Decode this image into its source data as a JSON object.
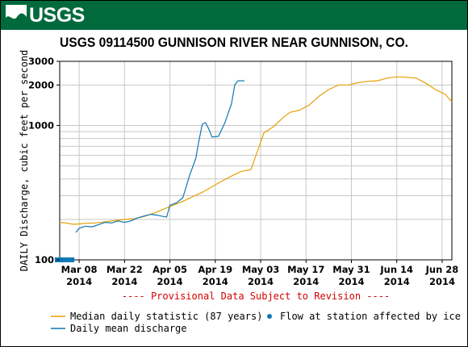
{
  "header": {
    "logo_text": "USGS"
  },
  "chart_data": {
    "type": "line",
    "title": "USGS 09114500 GUNNISON RIVER NEAR GUNNISON, CO.",
    "ylabel": "DAILY Discharge, cubic feet per second",
    "y_scale": "log",
    "ylim": [
      100,
      3000
    ],
    "y_ticks": [
      {
        "value": 100,
        "label": "100"
      },
      {
        "value": 1000,
        "label": "1000"
      },
      {
        "value": 2000,
        "label": "2000"
      },
      {
        "value": 3000,
        "label": "3000"
      }
    ],
    "x_ticks": [
      {
        "date": "2014-03-08",
        "label_top": "Mar 08",
        "label_bottom": "2014"
      },
      {
        "date": "2014-03-22",
        "label_top": "Mar 22",
        "label_bottom": "2014"
      },
      {
        "date": "2014-04-05",
        "label_top": "Apr 05",
        "label_bottom": "2014"
      },
      {
        "date": "2014-04-19",
        "label_top": "Apr 19",
        "label_bottom": "2014"
      },
      {
        "date": "2014-05-03",
        "label_top": "May 03",
        "label_bottom": "2014"
      },
      {
        "date": "2014-05-17",
        "label_top": "May 17",
        "label_bottom": "2014"
      },
      {
        "date": "2014-05-31",
        "label_top": "May 31",
        "label_bottom": "2014"
      },
      {
        "date": "2014-06-14",
        "label_top": "Jun 14",
        "label_bottom": "2014"
      },
      {
        "date": "2014-06-28",
        "label_top": "Jun 28",
        "label_bottom": "2014"
      }
    ],
    "xlim": [
      "2014-03-02",
      "2014-07-01"
    ],
    "grid": true,
    "provisional_note": "---- Provisional Data Subject to Revision ----",
    "series": [
      {
        "name": "Median daily statistic (87 years)",
        "color": "#e8a000",
        "style": "line",
        "points": [
          [
            "2014-03-02",
            190
          ],
          [
            "2014-03-04",
            188
          ],
          [
            "2014-03-06",
            184
          ],
          [
            "2014-03-08",
            185
          ],
          [
            "2014-03-10",
            187
          ],
          [
            "2014-03-13",
            188
          ],
          [
            "2014-03-16",
            192
          ],
          [
            "2014-03-19",
            196
          ],
          [
            "2014-03-22",
            200
          ],
          [
            "2014-03-25",
            202
          ],
          [
            "2014-03-28",
            210
          ],
          [
            "2014-03-31",
            222
          ],
          [
            "2014-04-03",
            238
          ],
          [
            "2014-04-06",
            255
          ],
          [
            "2014-04-09",
            272
          ],
          [
            "2014-04-12",
            295
          ],
          [
            "2014-04-15",
            318
          ],
          [
            "2014-04-18",
            350
          ],
          [
            "2014-04-21",
            385
          ],
          [
            "2014-04-24",
            420
          ],
          [
            "2014-04-27",
            455
          ],
          [
            "2014-04-30",
            470
          ],
          [
            "2014-05-02",
            640
          ],
          [
            "2014-05-04",
            880
          ],
          [
            "2014-05-07",
            980
          ],
          [
            "2014-05-10",
            1150
          ],
          [
            "2014-05-12",
            1250
          ],
          [
            "2014-05-15",
            1300
          ],
          [
            "2014-05-18",
            1420
          ],
          [
            "2014-05-21",
            1650
          ],
          [
            "2014-05-24",
            1850
          ],
          [
            "2014-05-27",
            2000
          ],
          [
            "2014-05-30",
            2000
          ],
          [
            "2014-06-02",
            2080
          ],
          [
            "2014-06-05",
            2130
          ],
          [
            "2014-06-08",
            2150
          ],
          [
            "2014-06-11",
            2250
          ],
          [
            "2014-06-14",
            2300
          ],
          [
            "2014-06-17",
            2280
          ],
          [
            "2014-06-20",
            2250
          ],
          [
            "2014-06-23",
            2060
          ],
          [
            "2014-06-26",
            1850
          ],
          [
            "2014-06-29",
            1700
          ],
          [
            "2014-07-01",
            1500
          ]
        ]
      },
      {
        "name": "Daily mean discharge",
        "color": "#0f77b5",
        "style": "line",
        "points": [
          [
            "2014-03-07",
            160
          ],
          [
            "2014-03-08",
            172
          ],
          [
            "2014-03-10",
            178
          ],
          [
            "2014-03-12",
            176
          ],
          [
            "2014-03-14",
            183
          ],
          [
            "2014-03-16",
            190
          ],
          [
            "2014-03-18",
            188
          ],
          [
            "2014-03-20",
            195
          ],
          [
            "2014-03-22",
            190
          ],
          [
            "2014-03-24",
            195
          ],
          [
            "2014-03-26",
            205
          ],
          [
            "2014-03-28",
            212
          ],
          [
            "2014-03-30",
            218
          ],
          [
            "2014-04-01",
            215
          ],
          [
            "2014-04-03",
            210
          ],
          [
            "2014-04-04",
            208
          ],
          [
            "2014-04-05",
            255
          ],
          [
            "2014-04-07",
            265
          ],
          [
            "2014-04-09",
            290
          ],
          [
            "2014-04-11",
            420
          ],
          [
            "2014-04-13",
            570
          ],
          [
            "2014-04-14",
            780
          ],
          [
            "2014-04-15",
            1020
          ],
          [
            "2014-04-16",
            1050
          ],
          [
            "2014-04-17",
            940
          ],
          [
            "2014-04-18",
            820
          ],
          [
            "2014-04-20",
            830
          ],
          [
            "2014-04-22",
            1050
          ],
          [
            "2014-04-24",
            1450
          ],
          [
            "2014-04-25",
            2000
          ],
          [
            "2014-04-26",
            2150
          ],
          [
            "2014-04-28",
            2150
          ]
        ]
      },
      {
        "name": "Flow at station affected by ice",
        "color": "#0f77b5",
        "style": "markers",
        "points": [
          [
            "2014-03-01",
            100
          ],
          [
            "2014-03-02",
            100
          ],
          [
            "2014-03-03",
            100
          ],
          [
            "2014-03-04",
            100
          ],
          [
            "2014-03-05",
            100
          ],
          [
            "2014-03-06",
            100
          ]
        ]
      }
    ],
    "legend": {
      "placement": "bottom",
      "items": [
        {
          "label": "Median daily statistic (87 years)",
          "symbol": "line",
          "color": "#e8a000"
        },
        {
          "label": "Flow at station affected by ice",
          "symbol": "dot",
          "color": "#0f77b5"
        },
        {
          "label": "Daily mean discharge",
          "symbol": "line",
          "color": "#0f77b5"
        }
      ]
    }
  }
}
